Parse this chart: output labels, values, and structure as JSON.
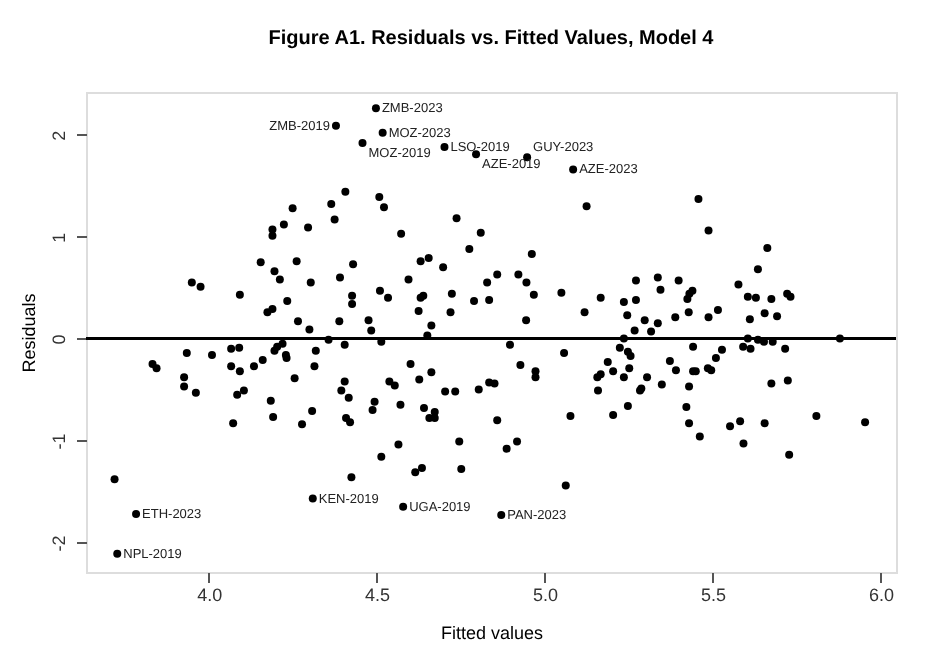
{
  "chart_data": {
    "type": "scatter",
    "title": "Figure A1. Residuals vs. Fitted Values, Model 4",
    "xlabel": "Fitted values",
    "ylabel": "Residuals",
    "marker": "circle",
    "grid": false,
    "xlim": [
      3.635,
      6.046
    ],
    "ylim": [
      -2.29,
      2.42
    ],
    "xticks": [
      {
        "value": 4,
        "label": "4.0"
      },
      {
        "value": 4.5,
        "label": "4.5"
      },
      {
        "value": 5,
        "label": "5.0"
      },
      {
        "value": 5.5,
        "label": "5.5"
      },
      {
        "value": 6,
        "label": "6.0"
      }
    ],
    "yticks": [
      -2,
      -1,
      0,
      1,
      2
    ],
    "ref_lines": [
      {
        "axis": "y",
        "value": 0,
        "color": "#000000"
      }
    ],
    "series": [
      {
        "color": "#000000",
        "x": [
          4.498,
          4.379,
          4.518,
          4.458,
          4.702,
          4.796,
          4.508,
          4.407,
          4.365,
          4.25,
          4.375,
          4.224,
          4.19,
          4.19,
          4.296,
          4.522,
          4.573,
          4.738,
          4.81,
          4.776,
          4.155,
          4.262,
          4.196,
          4.212,
          4.43,
          3.95,
          3.976,
          4.304,
          4.391,
          4.631,
          4.655,
          4.698,
          4.595,
          4.51,
          4.534,
          4.427,
          4.427,
          4.093,
          4.234,
          4.19,
          4.175,
          4.631,
          4.639,
          4.724,
          4.79,
          4.625,
          4.72,
          4.266,
          4.389,
          4.3,
          4.476,
          4.484,
          4.663,
          4.651,
          4.357,
          4.948,
          5.085,
          5.125,
          5.458,
          5.488,
          5.663,
          5.635,
          4.962,
          4.859,
          4.829,
          4.922,
          4.946,
          4.968,
          4.835,
          5.05,
          4.945,
          5.119,
          5.167,
          5.236,
          5.272,
          5.272,
          5.246,
          5.298,
          5.337,
          5.345,
          5.399,
          5.431,
          5.44,
          5.425,
          5.337,
          5.268,
          5.317,
          5.389,
          5.429,
          5.488,
          5.516,
          5.577,
          5.605,
          5.629,
          5.675,
          5.722,
          5.732,
          5.611,
          5.655,
          5.692,
          3.833,
          3.845,
          3.935,
          4.01,
          4.067,
          4.091,
          4.067,
          4.093,
          3.927,
          3.927,
          3.962,
          4.135,
          4.161,
          4.196,
          4.204,
          4.22,
          4.23,
          4.232,
          4.319,
          4.315,
          4.256,
          4.405,
          4.514,
          4.105,
          4.085,
          4.185,
          4.192,
          4.073,
          4.278,
          4.308,
          4.405,
          4.395,
          4.417,
          4.409,
          4.421,
          4.494,
          4.488,
          4.538,
          4.554,
          4.571,
          4.601,
          4.627,
          4.663,
          4.641,
          4.673,
          4.657,
          4.673,
          4.704,
          4.734,
          4.804,
          4.565,
          4.514,
          4.746,
          4.752,
          4.635,
          4.615,
          4.425,
          3.72,
          4.31,
          4.579,
          3.784,
          3.728,
          4.897,
          5.058,
          5.236,
          5.224,
          5.248,
          5.256,
          5.188,
          5.204,
          5.167,
          5.157,
          5.159,
          5.236,
          5.252,
          5.305,
          5.288,
          5.284,
          5.349,
          5.373,
          5.391,
          5.442,
          5.442,
          5.45,
          5.43,
          5.422,
          5.43,
          5.462,
          5.248,
          5.204,
          5.077,
          5.486,
          5.496,
          5.51,
          5.528,
          5.591,
          5.613,
          5.605,
          5.635,
          5.653,
          5.679,
          5.716,
          5.879,
          5.675,
          5.724,
          5.552,
          5.582,
          5.592,
          5.655,
          5.728,
          5.809,
          5.954,
          5.063,
          4.871,
          4.928,
          4.973,
          4.973,
          4.835,
          4.851,
          4.859,
          4.887,
          4.918
        ],
        "values": [
          2.26,
          2.09,
          2.02,
          1.92,
          1.88,
          1.81,
          1.39,
          1.44,
          1.32,
          1.28,
          1.17,
          1.12,
          1.07,
          1.01,
          1.09,
          1.29,
          1.03,
          1.18,
          1.04,
          0.88,
          0.75,
          0.76,
          0.66,
          0.58,
          0.73,
          0.55,
          0.51,
          0.55,
          0.6,
          0.76,
          0.79,
          0.7,
          0.58,
          0.47,
          0.4,
          0.42,
          0.34,
          0.43,
          0.37,
          0.29,
          0.26,
          0.4,
          0.42,
          0.44,
          0.37,
          0.27,
          0.26,
          0.17,
          0.17,
          0.09,
          0.18,
          0.08,
          0.13,
          0.03,
          -0.01,
          1.78,
          1.66,
          1.3,
          1.37,
          1.06,
          0.89,
          0.68,
          0.83,
          0.63,
          0.55,
          0.63,
          0.55,
          0.43,
          0.38,
          0.45,
          0.18,
          0.26,
          0.4,
          0.36,
          0.38,
          0.57,
          0.23,
          0.18,
          0.6,
          0.48,
          0.57,
          0.44,
          0.47,
          0.39,
          0.15,
          0.08,
          0.07,
          0.21,
          0.26,
          0.21,
          0.28,
          0.53,
          0.41,
          0.4,
          0.39,
          0.44,
          0.41,
          0.19,
          0.25,
          0.22,
          -0.25,
          -0.29,
          -0.14,
          -0.16,
          -0.1,
          -0.09,
          -0.27,
          -0.32,
          -0.38,
          -0.47,
          -0.53,
          -0.27,
          -0.21,
          -0.12,
          -0.08,
          -0.05,
          -0.16,
          -0.19,
          -0.12,
          -0.27,
          -0.39,
          -0.06,
          -0.03,
          -0.51,
          -0.55,
          -0.61,
          -0.77,
          -0.83,
          -0.84,
          -0.71,
          -0.42,
          -0.51,
          -0.58,
          -0.78,
          -0.82,
          -0.62,
          -0.7,
          -0.42,
          -0.46,
          -0.65,
          -0.25,
          -0.4,
          -0.33,
          -0.68,
          -0.72,
          -0.78,
          -0.78,
          -0.52,
          -0.52,
          -0.5,
          -1.04,
          -1.16,
          -1.01,
          -1.28,
          -1.27,
          -1.31,
          -1.36,
          -1.38,
          -1.57,
          -1.65,
          -1.72,
          -2.11,
          -0.06,
          -0.14,
          0.0,
          -0.09,
          -0.13,
          -0.17,
          -0.23,
          -0.32,
          -0.35,
          -0.38,
          -0.51,
          -0.38,
          -0.29,
          -0.38,
          -0.49,
          -0.51,
          -0.45,
          -0.22,
          -0.31,
          -0.08,
          -0.32,
          -0.32,
          -0.47,
          -0.67,
          -0.83,
          -0.96,
          -0.66,
          -0.75,
          -0.76,
          -0.29,
          -0.31,
          -0.19,
          -0.11,
          -0.08,
          -0.1,
          0.0,
          -0.01,
          -0.03,
          -0.03,
          -0.1,
          0.0,
          -0.44,
          -0.41,
          -0.86,
          -0.81,
          -1.03,
          -0.83,
          -1.14,
          -0.76,
          -0.82,
          -1.44,
          -1.73,
          -0.26,
          -0.32,
          -0.38,
          -0.43,
          -0.44,
          -0.8,
          -1.08,
          -1.01
        ]
      }
    ],
    "annotations": [
      {
        "text": "ZMB-2023",
        "x": 4.498,
        "y": 2.26
      },
      {
        "text": "ZMB-2019",
        "x": 4.379,
        "y": 2.09
      },
      {
        "text": "MOZ-2023",
        "x": 4.518,
        "y": 2.02
      },
      {
        "text": "MOZ-2019",
        "x": 4.458,
        "y": 1.92
      },
      {
        "text": "LSO-2019",
        "x": 4.702,
        "y": 1.88
      },
      {
        "text": "AZE-2019",
        "x": 4.796,
        "y": 1.81
      },
      {
        "text": "GUY-2023",
        "x": 4.948,
        "y": 1.78
      },
      {
        "text": "AZE-2023",
        "x": 5.085,
        "y": 1.66
      },
      {
        "text": "KEN-2019",
        "x": 4.31,
        "y": -1.57
      },
      {
        "text": "UGA-2019",
        "x": 4.579,
        "y": -1.65
      },
      {
        "text": "PAN-2023",
        "x": 4.871,
        "y": -1.73
      },
      {
        "text": "ETH-2023",
        "x": 3.784,
        "y": -1.72
      },
      {
        "text": "NPL-2019",
        "x": 3.728,
        "y": -2.11
      }
    ]
  }
}
